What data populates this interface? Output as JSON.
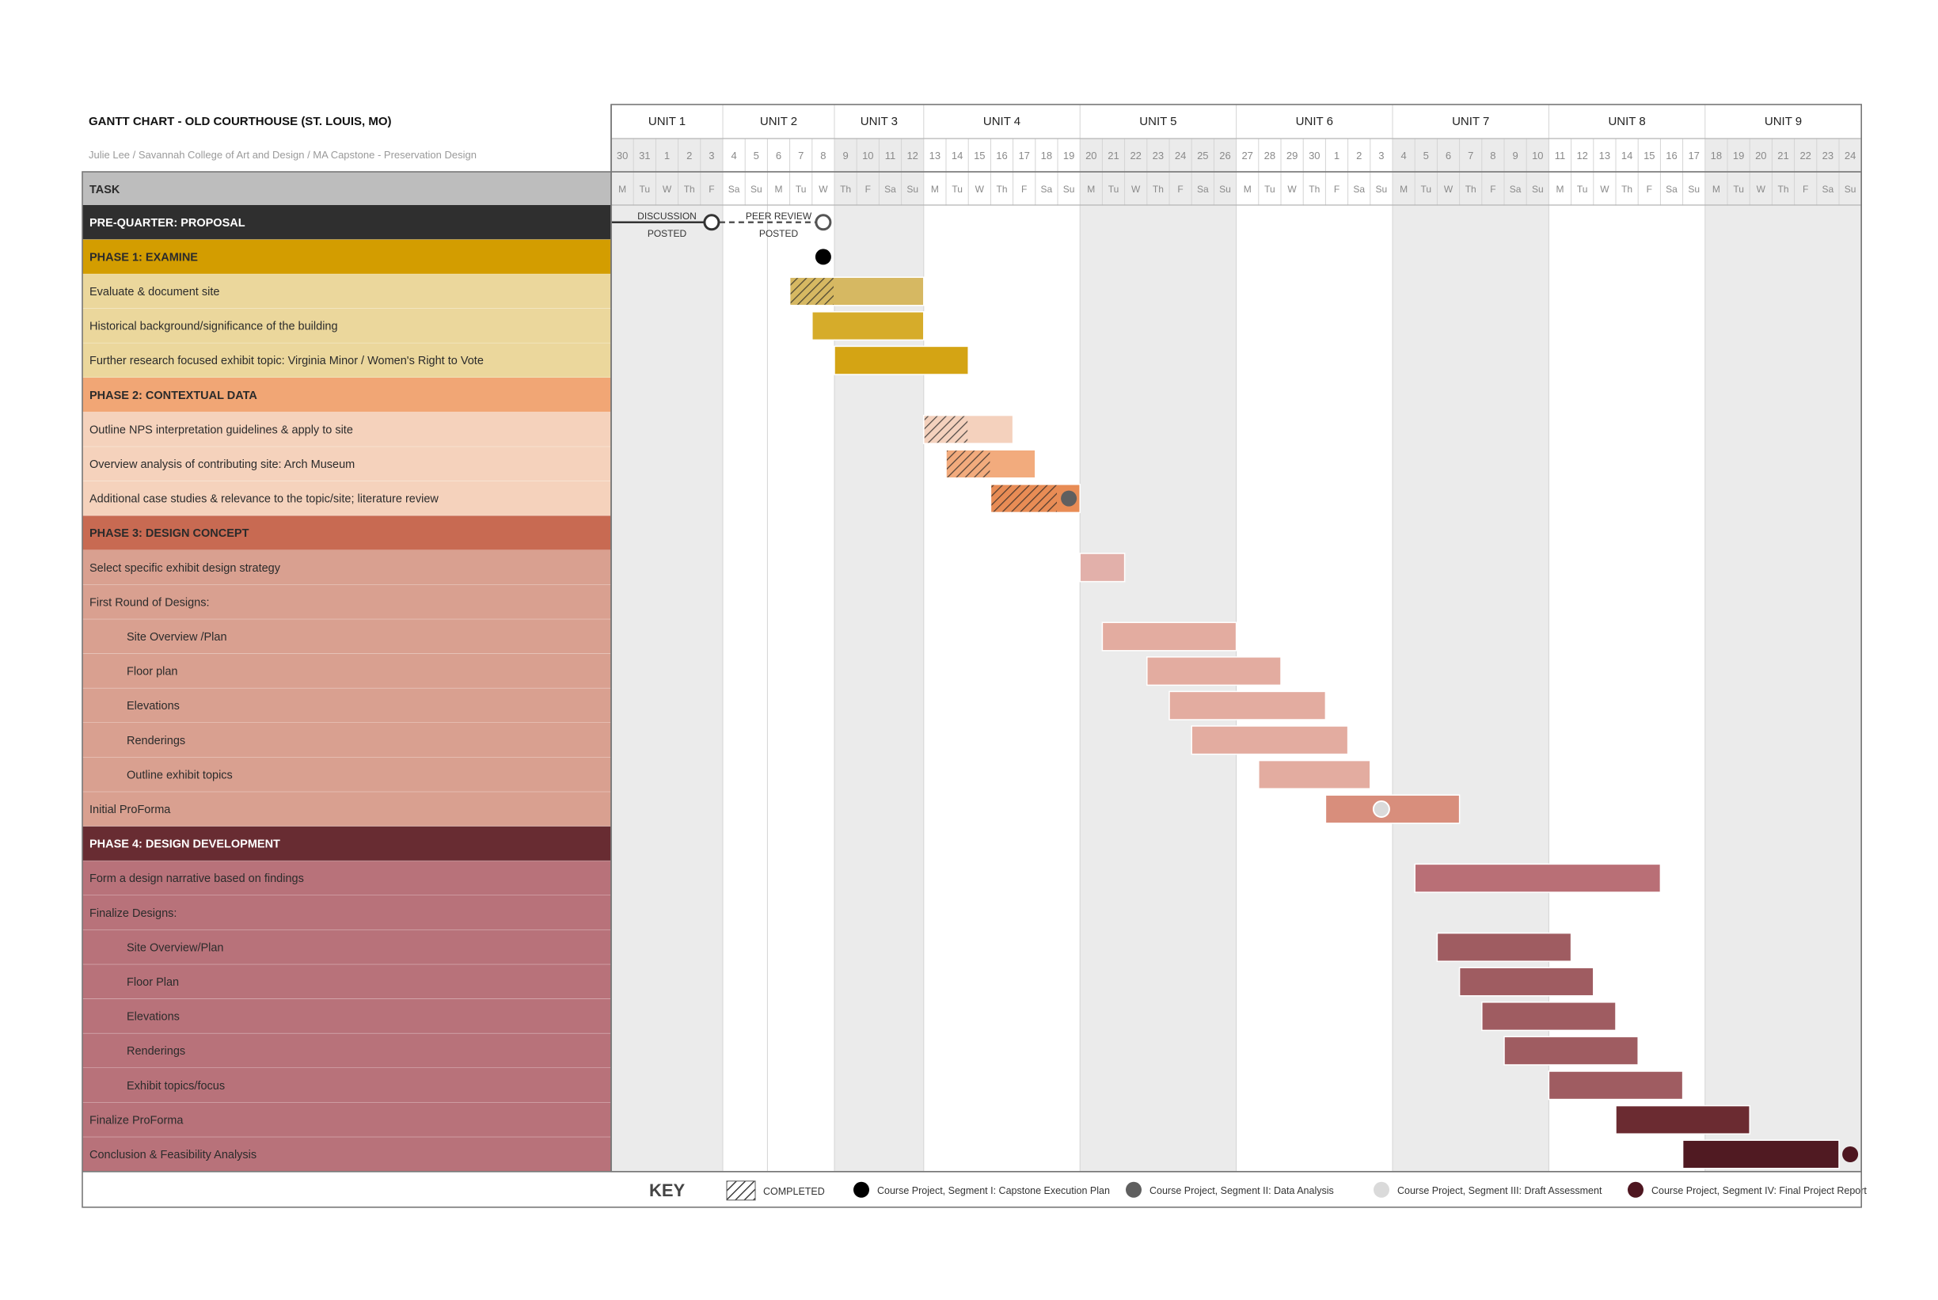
{
  "header": {
    "title": "GANTT CHART - OLD COURTHOUSE (ST. LOUIS, MO)",
    "subtitle": "Julie Lee / Savannah College of Art and Design / MA Capstone - Preservation Design",
    "task_column_label": "TASK"
  },
  "colors": {
    "pre_quarter": "#2f2f2f",
    "phase1_header": "#d39d00",
    "phase1_rows": "#ebd79c",
    "phase2_header": "#f1a675",
    "phase2_rows": "#f5d2bc",
    "phase3_header": "#c86a52",
    "phase3_rows": "#d9a090",
    "phase4_header": "#682c32",
    "phase4_rows": "#b8727a",
    "shade": "#ebebeb",
    "grid": "#d4d4d4"
  },
  "chart_data": {
    "type": "gantt",
    "title": "GANTT CHART - OLD COURTHOUSE (ST. LOUIS, MO)",
    "units": [
      {
        "label": "UNIT 1",
        "span": [
          0,
          5
        ],
        "shaded": true
      },
      {
        "label": "UNIT 2",
        "span": [
          5,
          10
        ],
        "shaded": false
      },
      {
        "label": "UNIT 3",
        "span": [
          10,
          14
        ],
        "shaded": true
      },
      {
        "label": "UNIT 4",
        "span": [
          14,
          21
        ],
        "shaded": false
      },
      {
        "label": "UNIT 5",
        "span": [
          21,
          28
        ],
        "shaded": true
      },
      {
        "label": "UNIT 6",
        "span": [
          28,
          35
        ],
        "shaded": false
      },
      {
        "label": "UNIT 7",
        "span": [
          35,
          42
        ],
        "shaded": true
      },
      {
        "label": "UNIT 8",
        "span": [
          42,
          49
        ],
        "shaded": false
      },
      {
        "label": "UNIT 9",
        "span": [
          49,
          56
        ],
        "shaded": true
      }
    ],
    "days": [
      "30",
      "31",
      "1",
      "2",
      "3",
      "4",
      "5",
      "6",
      "7",
      "8",
      "9",
      "10",
      "11",
      "12",
      "13",
      "14",
      "15",
      "16",
      "17",
      "18",
      "19",
      "20",
      "21",
      "22",
      "23",
      "24",
      "25",
      "26",
      "27",
      "28",
      "29",
      "30",
      "1",
      "2",
      "3",
      "4",
      "5",
      "6",
      "7",
      "8",
      "9",
      "10",
      "11",
      "12",
      "13",
      "14",
      "15",
      "16",
      "17",
      "18",
      "19",
      "20",
      "21",
      "22",
      "23",
      "24"
    ],
    "weekdays": [
      "M",
      "Tu",
      "W",
      "Th",
      "F",
      "Sa",
      "Su",
      "M",
      "Tu",
      "W",
      "Th",
      "F",
      "Sa",
      "Su",
      "M",
      "Tu",
      "W",
      "Th",
      "F",
      "Sa",
      "Su",
      "M",
      "Tu",
      "W",
      "Th",
      "F",
      "Sa",
      "Su",
      "M",
      "Tu",
      "W",
      "Th",
      "F",
      "Sa",
      "Su",
      "M",
      "Tu",
      "W",
      "Th",
      "F",
      "Sa",
      "Su",
      "M",
      "Tu",
      "W",
      "Th",
      "F",
      "Sa",
      "Su",
      "M",
      "Tu",
      "W",
      "Th",
      "F",
      "Sa",
      "Su"
    ],
    "rows": [
      {
        "label": "PRE-QUARTER: PROPOSAL",
        "kind": "pre",
        "phase": "pre"
      },
      {
        "label": "PHASE 1: EXAMINE",
        "kind": "phase",
        "phase": "p1"
      },
      {
        "label": "Evaluate & document site",
        "kind": "task",
        "phase": "p1",
        "indent": false
      },
      {
        "label": "Historical background/significance of the building",
        "kind": "task",
        "phase": "p1",
        "indent": false
      },
      {
        "label": "Further research focused exhibit topic: Virginia Minor / Women's Right to Vote",
        "kind": "task",
        "phase": "p1",
        "indent": false
      },
      {
        "label": "PHASE 2: CONTEXTUAL DATA",
        "kind": "phase",
        "phase": "p2"
      },
      {
        "label": "Outline NPS interpretation guidelines & apply to site",
        "kind": "task",
        "phase": "p2",
        "indent": false
      },
      {
        "label": "Overview analysis of contributing site: Arch Museum",
        "kind": "task",
        "phase": "p2",
        "indent": false
      },
      {
        "label": "Additional case studies & relevance to the topic/site; literature review",
        "kind": "task",
        "phase": "p2",
        "indent": false
      },
      {
        "label": "PHASE 3: DESIGN CONCEPT",
        "kind": "phase",
        "phase": "p3"
      },
      {
        "label": "Select specific exhibit design strategy",
        "kind": "task",
        "phase": "p3",
        "indent": false
      },
      {
        "label": "First Round of Designs:",
        "kind": "task",
        "phase": "p3",
        "indent": false
      },
      {
        "label": "Site Overview /Plan",
        "kind": "task",
        "phase": "p3",
        "indent": true
      },
      {
        "label": "Floor plan",
        "kind": "task",
        "phase": "p3",
        "indent": true
      },
      {
        "label": "Elevations",
        "kind": "task",
        "phase": "p3",
        "indent": true
      },
      {
        "label": "Renderings",
        "kind": "task",
        "phase": "p3",
        "indent": true
      },
      {
        "label": "Outline exhibit topics",
        "kind": "task",
        "phase": "p3",
        "indent": true
      },
      {
        "label": "Initial ProForma",
        "kind": "task",
        "phase": "p3",
        "indent": false
      },
      {
        "label": "PHASE 4: DESIGN DEVELOPMENT",
        "kind": "phase",
        "phase": "p4"
      },
      {
        "label": "Form a design narrative based on findings",
        "kind": "task",
        "phase": "p4",
        "indent": false
      },
      {
        "label": "Finalize Designs:",
        "kind": "task",
        "phase": "p4",
        "indent": false
      },
      {
        "label": "Site Overview/Plan",
        "kind": "task",
        "phase": "p4",
        "indent": true
      },
      {
        "label": "Floor Plan",
        "kind": "task",
        "phase": "p4",
        "indent": true
      },
      {
        "label": "Elevations",
        "kind": "task",
        "phase": "p4",
        "indent": true
      },
      {
        "label": "Renderings",
        "kind": "task",
        "phase": "p4",
        "indent": true
      },
      {
        "label": "Exhibit topics/focus",
        "kind": "task",
        "phase": "p4",
        "indent": true
      },
      {
        "label": "Finalize ProForma",
        "kind": "task",
        "phase": "p4",
        "indent": false
      },
      {
        "label": "Conclusion & Feasibility Analysis",
        "kind": "task",
        "phase": "p4",
        "indent": false
      }
    ],
    "bars": [
      {
        "row": 2,
        "start": 8,
        "end": 14,
        "color": "#d6b862",
        "hatch": [
          8,
          10
        ]
      },
      {
        "row": 3,
        "start": 9,
        "end": 14,
        "color": "#d6ac2a"
      },
      {
        "row": 4,
        "start": 10,
        "end": 16,
        "color": "#d4a414"
      },
      {
        "row": 6,
        "start": 14,
        "end": 18,
        "color": "#f4d1bd",
        "hatch": [
          14,
          16
        ]
      },
      {
        "row": 7,
        "start": 15,
        "end": 19,
        "color": "#f2ab7d",
        "hatch": [
          15,
          17
        ]
      },
      {
        "row": 8,
        "start": 17,
        "end": 21,
        "color": "#e88c55",
        "hatch": [
          17,
          20
        ]
      },
      {
        "row": 10,
        "start": 21,
        "end": 23,
        "color": "#e2b0aa"
      },
      {
        "row": 12,
        "start": 22,
        "end": 28,
        "color": "#e3aca0"
      },
      {
        "row": 13,
        "start": 24,
        "end": 30,
        "color": "#e3aca0"
      },
      {
        "row": 14,
        "start": 25,
        "end": 32,
        "color": "#e3aca0"
      },
      {
        "row": 15,
        "start": 26,
        "end": 33,
        "color": "#e3aca0"
      },
      {
        "row": 16,
        "start": 29,
        "end": 34,
        "color": "#e3aca0"
      },
      {
        "row": 17,
        "start": 32,
        "end": 38,
        "color": "#d88e7c"
      },
      {
        "row": 19,
        "start": 36,
        "end": 47,
        "color": "#b96f76"
      },
      {
        "row": 21,
        "start": 37,
        "end": 43,
        "color": "#9f5c61"
      },
      {
        "row": 22,
        "start": 38,
        "end": 44,
        "color": "#9f5c61"
      },
      {
        "row": 23,
        "start": 39,
        "end": 45,
        "color": "#9f5c61"
      },
      {
        "row": 24,
        "start": 40,
        "end": 46,
        "color": "#9f5c61"
      },
      {
        "row": 25,
        "start": 42,
        "end": 48,
        "color": "#9f5c61"
      },
      {
        "row": 26,
        "start": 45,
        "end": 51,
        "color": "#6b2b31"
      },
      {
        "row": 27,
        "start": 48,
        "end": 55,
        "color": "#501a22"
      }
    ],
    "milestones": [
      {
        "row": 1,
        "day": 9,
        "type": "black"
      },
      {
        "row": 8,
        "day": 20,
        "type": "gray"
      },
      {
        "row": 17,
        "day": 34,
        "type": "light"
      },
      {
        "row": 27,
        "day": 55,
        "type": "maroon"
      }
    ],
    "pre_quarter": {
      "discussion_label": [
        "DISCUSSION",
        "POSTED"
      ],
      "peer_review_label": [
        "PEER REVIEW",
        "POSTED"
      ],
      "discussion_day": 4,
      "peer_review_day": 9
    },
    "legend": {
      "title": "KEY",
      "items": [
        {
          "type": "hatch",
          "label": "COMPLETED"
        },
        {
          "type": "dot",
          "color": "#000000",
          "label": "Course Project, Segment I: Capstone Execution Plan"
        },
        {
          "type": "dot",
          "color": "#5f5f5f",
          "label": "Course Project, Segment II: Data Analysis"
        },
        {
          "type": "dot",
          "color": "#dadada",
          "label": "Course Project, Segment III: Draft Assessment"
        },
        {
          "type": "dot",
          "color": "#4e1620",
          "label": "Course Project, Segment IV: Final Project Report"
        }
      ]
    }
  }
}
